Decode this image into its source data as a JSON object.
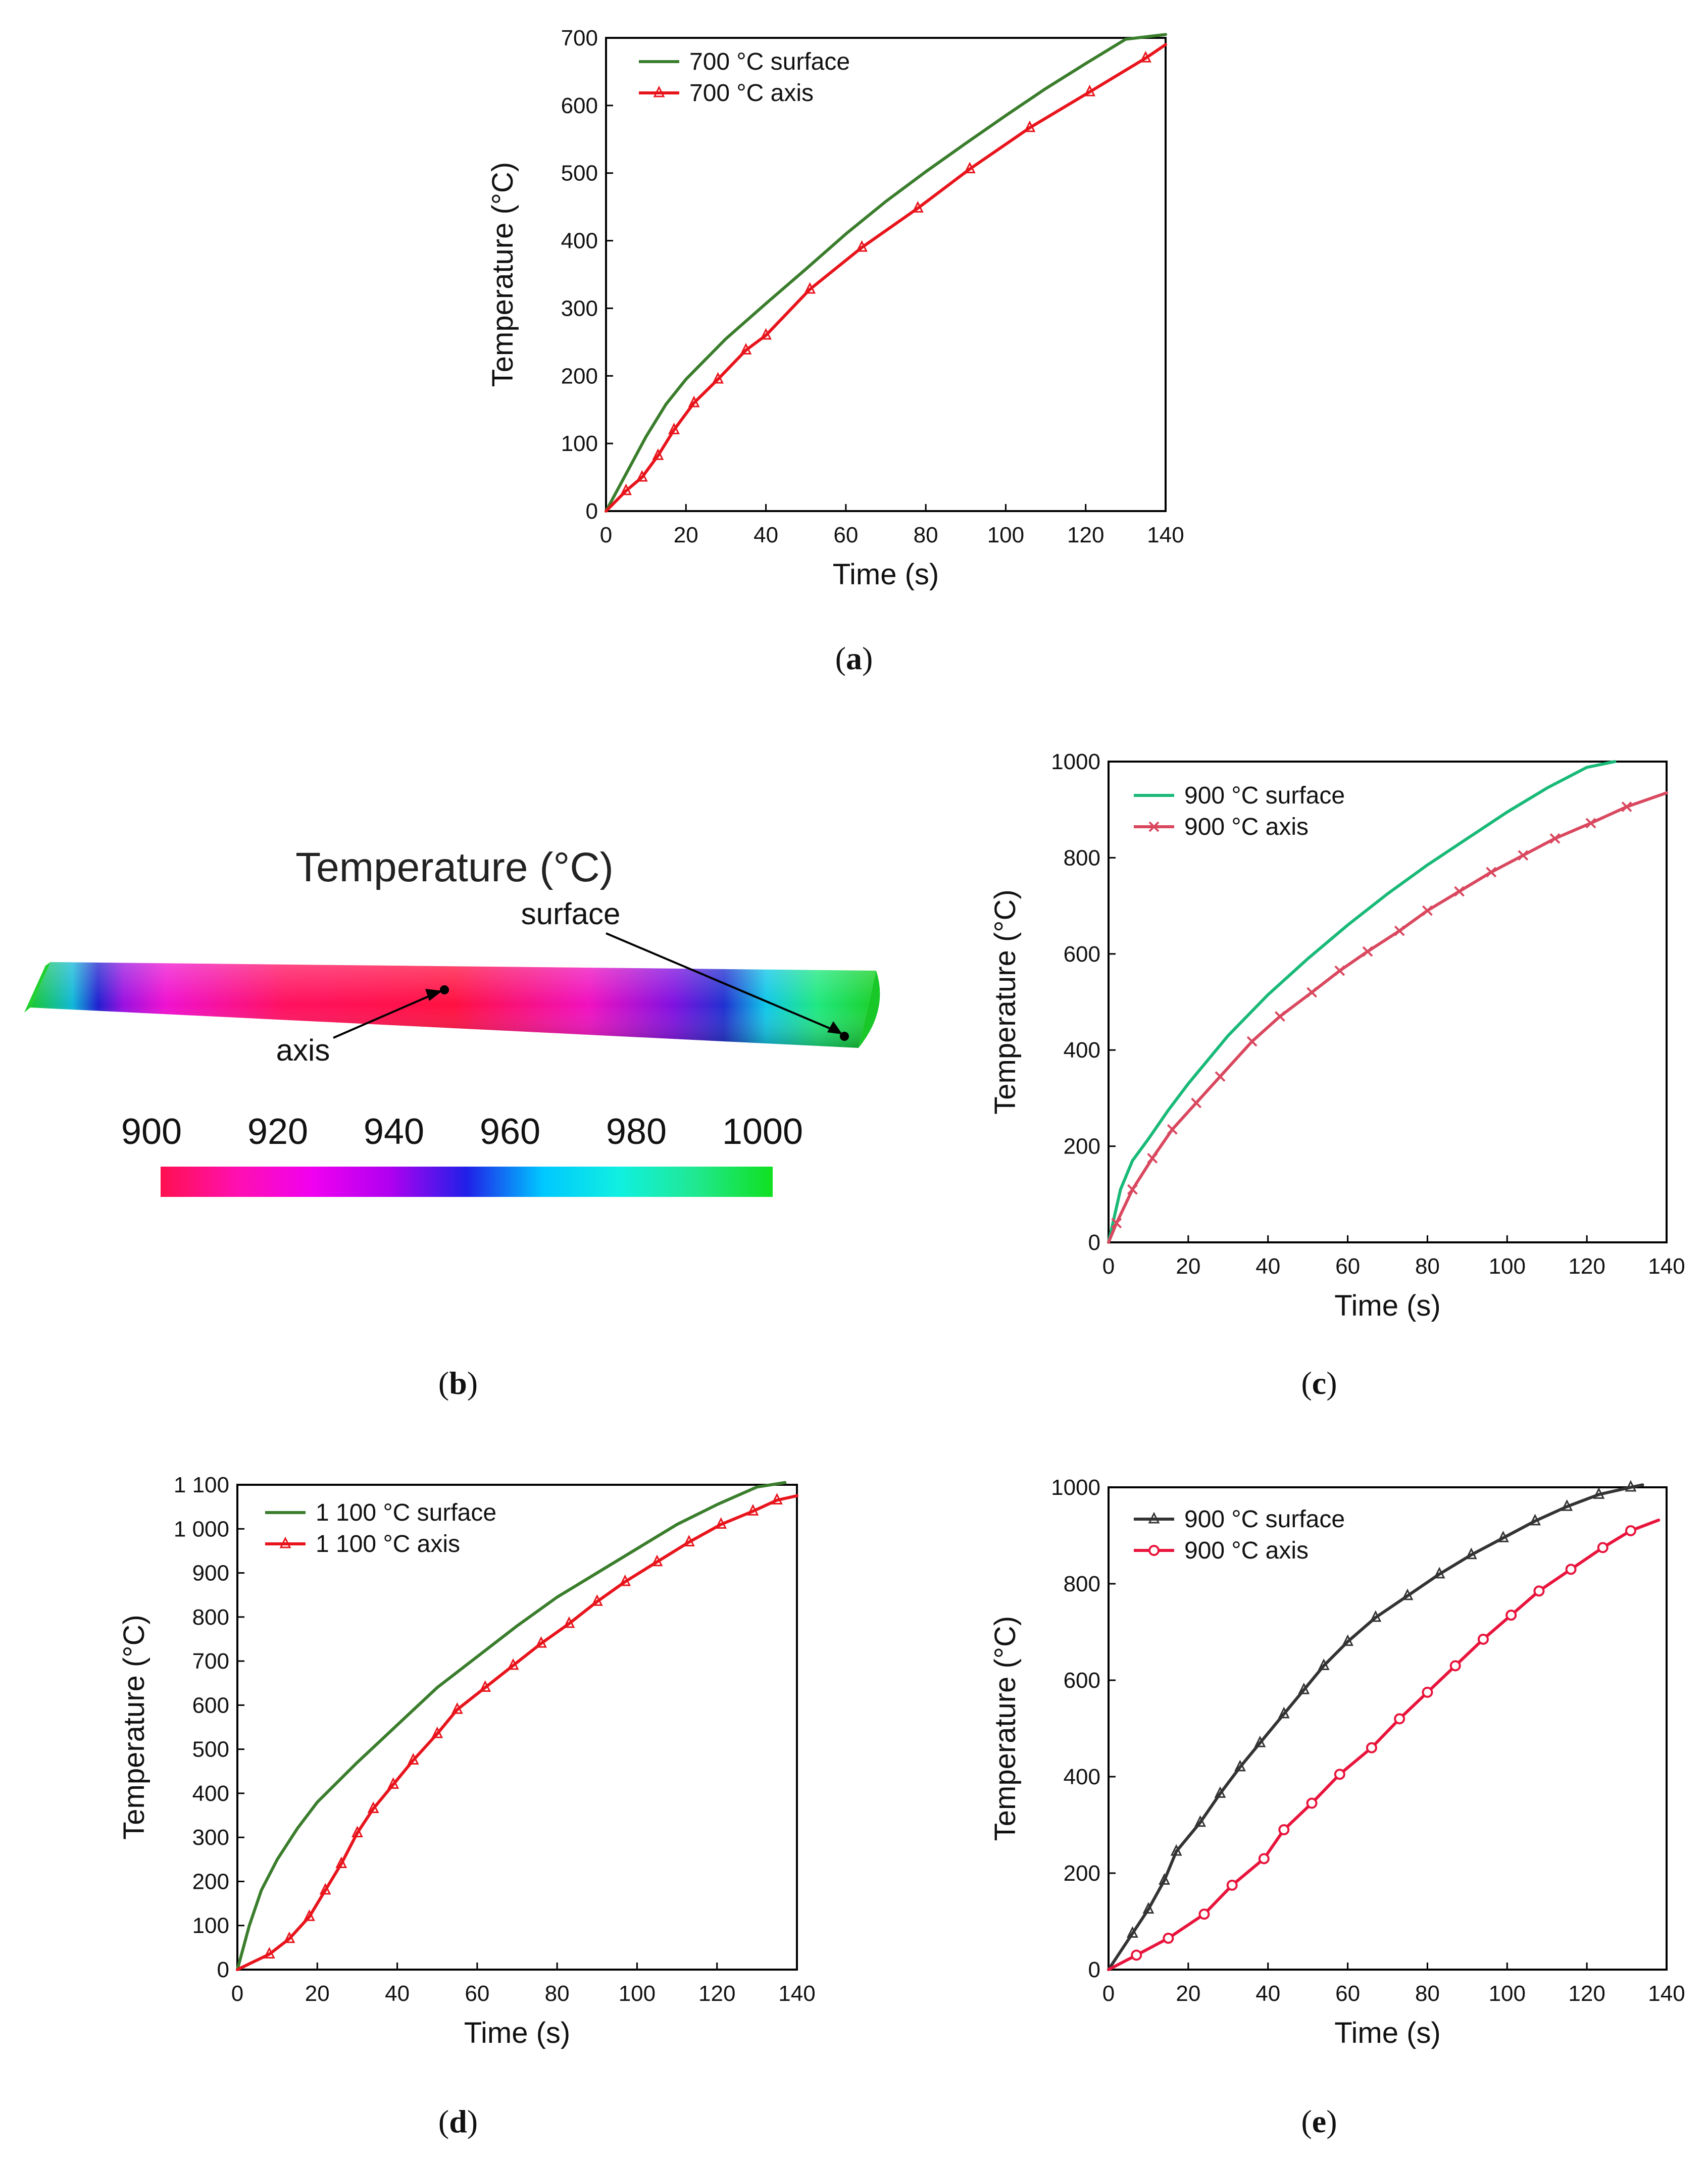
{
  "figure": {
    "panel_labels": [
      "a",
      "b",
      "c",
      "d",
      "e"
    ]
  },
  "contour": {
    "title": "Temperature (°C)",
    "annotations": {
      "surface": "surface",
      "axis": "axis"
    },
    "colorbar": {
      "ticks": [
        "900",
        "920",
        "940",
        "960",
        "980",
        "1000"
      ],
      "colors": [
        "#ff1050",
        "#ff10b0",
        "#f000f0",
        "#b000f0",
        "#2020e8",
        "#00c8ff",
        "#10f0e0",
        "#20e890",
        "#10e020"
      ]
    }
  },
  "chart_data": [
    {
      "id": "a",
      "type": "line",
      "title": "",
      "xlabel": "Time (s)",
      "ylabel": "Temperature (°C)",
      "xlim": [
        0,
        140
      ],
      "ylim": [
        0,
        700
      ],
      "xticks": [
        "0",
        "20",
        "40",
        "60",
        "80",
        "100",
        "120",
        "140"
      ],
      "yticks": [
        "0",
        "100",
        "200",
        "300",
        "400",
        "500",
        "600",
        "700"
      ],
      "legend_position": "top-left",
      "series": [
        {
          "name": "700 °C surface",
          "color": "#3a7d2c",
          "marker": "none",
          "x": [
            0,
            5,
            10,
            15,
            20,
            30,
            40,
            50,
            60,
            70,
            80,
            90,
            100,
            110,
            120,
            130,
            140
          ],
          "y": [
            0,
            55,
            110,
            158,
            195,
            255,
            307,
            358,
            410,
            458,
            502,
            544,
            585,
            625,
            662,
            698,
            705
          ]
        },
        {
          "name": "700 °C axis",
          "color": "#e8141c",
          "marker": "triangle",
          "x": [
            0,
            5,
            9,
            13,
            17,
            22,
            28,
            35,
            40,
            51,
            64,
            78,
            91,
            106,
            121,
            135,
            140
          ],
          "y": [
            0,
            30,
            50,
            82,
            120,
            160,
            195,
            238,
            260,
            328,
            390,
            448,
            506,
            567,
            620,
            670,
            690
          ]
        }
      ]
    },
    {
      "id": "c",
      "type": "line",
      "title": "",
      "xlabel": "Time (s)",
      "ylabel": "Temperature (°C)",
      "xlim": [
        0,
        140
      ],
      "ylim": [
        0,
        1000
      ],
      "xticks": [
        "0",
        "20",
        "40",
        "60",
        "80",
        "100",
        "120",
        "140"
      ],
      "yticks": [
        "0",
        "200",
        "400",
        "600",
        "800",
        "1000"
      ],
      "legend_position": "top-left",
      "series": [
        {
          "name": "900 °C surface",
          "color": "#19b978",
          "marker": "none",
          "x": [
            0,
            3,
            6,
            10,
            15,
            20,
            30,
            40,
            50,
            60,
            70,
            80,
            90,
            100,
            110,
            120,
            127
          ],
          "y": [
            0,
            110,
            170,
            215,
            275,
            330,
            430,
            515,
            590,
            660,
            725,
            785,
            840,
            895,
            945,
            988,
            1000
          ]
        },
        {
          "name": "900 °C axis",
          "color": "#d9485f",
          "marker": "x",
          "x": [
            0,
            2,
            6,
            11,
            16,
            22,
            28,
            36,
            43,
            51,
            58,
            65,
            73,
            80,
            88,
            96,
            104,
            112,
            121,
            130,
            140
          ],
          "y": [
            0,
            40,
            110,
            175,
            235,
            290,
            345,
            418,
            470,
            520,
            565,
            605,
            648,
            690,
            730,
            770,
            805,
            840,
            872,
            906,
            935
          ]
        }
      ]
    },
    {
      "id": "d",
      "type": "line",
      "title": "",
      "xlabel": "Time (s)",
      "ylabel": "Temperature (°C)",
      "xlim": [
        0,
        140
      ],
      "ylim": [
        0,
        1100
      ],
      "xticks": [
        "0",
        "20",
        "40",
        "60",
        "80",
        "100",
        "120",
        "140"
      ],
      "yticks": [
        "0",
        "100",
        "200",
        "300",
        "400",
        "500",
        "600",
        "700",
        "800",
        "900",
        "1 000",
        "1 100"
      ],
      "legend_position": "top-left",
      "series": [
        {
          "name": "1 100 °C surface",
          "color": "#3a7d2c",
          "marker": "none",
          "x": [
            0,
            3,
            6,
            10,
            15,
            20,
            30,
            40,
            50,
            60,
            70,
            80,
            90,
            100,
            110,
            120,
            130,
            137
          ],
          "y": [
            0,
            100,
            180,
            250,
            320,
            380,
            470,
            555,
            640,
            710,
            780,
            845,
            900,
            955,
            1010,
            1055,
            1095,
            1105
          ]
        },
        {
          "name": "1 100 °C axis",
          "color": "#e8141c",
          "marker": "triangle",
          "x": [
            0,
            8,
            13,
            18,
            22,
            26,
            30,
            34,
            39,
            44,
            50,
            55,
            62,
            69,
            76,
            83,
            90,
            97,
            105,
            113,
            121,
            129,
            135,
            140
          ],
          "y": [
            0,
            35,
            70,
            120,
            180,
            240,
            310,
            365,
            420,
            475,
            535,
            590,
            640,
            690,
            740,
            785,
            835,
            880,
            925,
            970,
            1010,
            1040,
            1065,
            1075
          ]
        }
      ]
    },
    {
      "id": "e",
      "type": "line",
      "title": "",
      "xlabel": "Time (s)",
      "ylabel": "Temperature (°C)",
      "xlim": [
        0,
        140
      ],
      "ylim": [
        0,
        1000
      ],
      "xticks": [
        "0",
        "20",
        "40",
        "60",
        "80",
        "100",
        "120",
        "140"
      ],
      "yticks": [
        "0",
        "200",
        "400",
        "600",
        "800",
        "1000"
      ],
      "legend_position": "top-left",
      "series": [
        {
          "name": "900 °C surface",
          "color": "#333333",
          "marker": "triangle",
          "x": [
            0,
            6,
            10,
            14,
            17,
            23,
            28,
            33,
            38,
            44,
            49,
            54,
            60,
            67,
            75,
            83,
            91,
            99,
            107,
            115,
            123,
            131,
            134
          ],
          "y": [
            0,
            75,
            125,
            185,
            245,
            305,
            365,
            420,
            470,
            530,
            580,
            630,
            680,
            730,
            775,
            820,
            860,
            895,
            930,
            960,
            985,
            1000,
            1005
          ]
        },
        {
          "name": "900 °C axis",
          "color": "#e8143c",
          "marker": "circle",
          "x": [
            0,
            7,
            15,
            24,
            31,
            39,
            44,
            51,
            58,
            66,
            73,
            80,
            87,
            94,
            101,
            108,
            116,
            124,
            131,
            138
          ],
          "y": [
            0,
            30,
            65,
            115,
            175,
            230,
            290,
            345,
            405,
            460,
            520,
            575,
            630,
            685,
            735,
            785,
            830,
            875,
            910,
            932
          ]
        }
      ]
    }
  ]
}
